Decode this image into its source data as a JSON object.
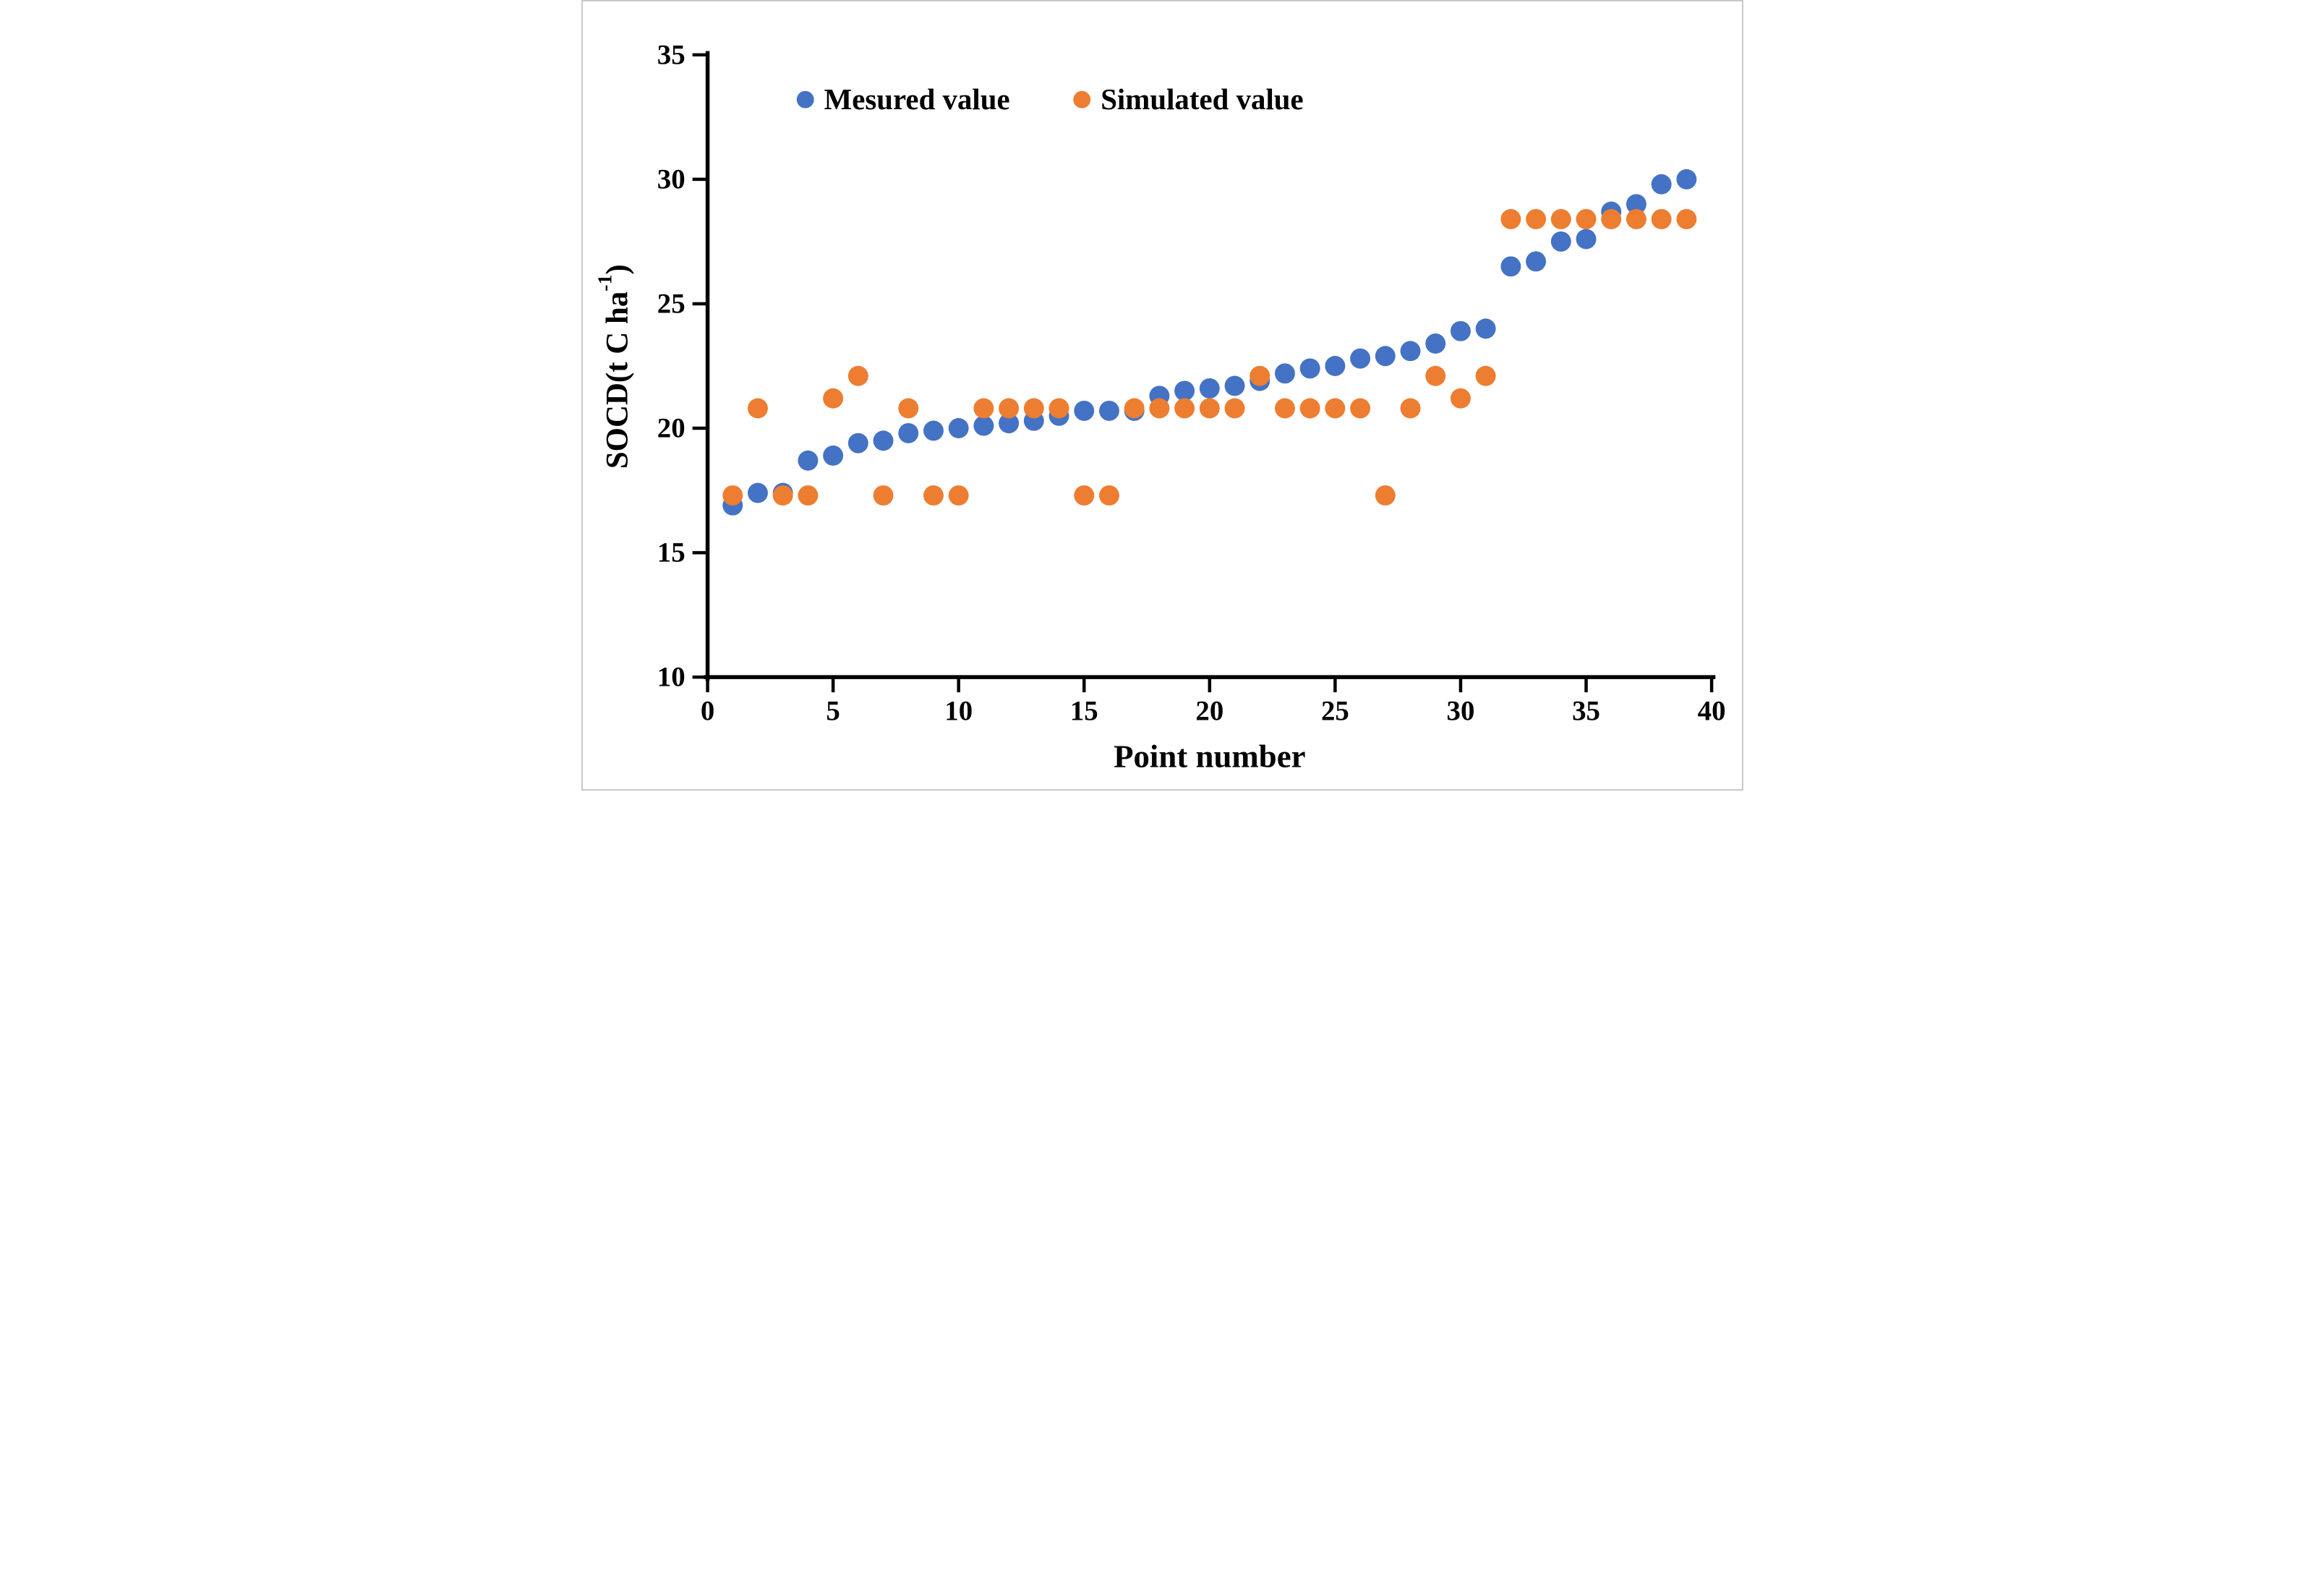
{
  "figure": {
    "border_color": "#c9c9c9",
    "background_color": "#ffffff",
    "text_color": "#000000",
    "axis_color": "#000000"
  },
  "chart_data": {
    "type": "scatter",
    "title": "",
    "xlabel": "Point number",
    "ylabel": "SOCD(t C ha⁻¹)",
    "ylabel_parts": {
      "prefix": "SOCD(t C ha",
      "superscript": "-1",
      "suffix": ")"
    },
    "xlim": [
      0,
      40
    ],
    "ylim": [
      10,
      35
    ],
    "xticks": [
      0,
      5,
      10,
      15,
      20,
      25,
      30,
      35,
      40
    ],
    "yticks": [
      10,
      15,
      20,
      25,
      30,
      35
    ],
    "grid": false,
    "legend_position": "top-inside",
    "legend": [
      {
        "label": "Mesured value",
        "color": "#4472C4",
        "marker": "circle"
      },
      {
        "label": "Simulated value",
        "color": "#ED7D31",
        "marker": "circle"
      }
    ],
    "x": [
      1,
      2,
      3,
      4,
      5,
      6,
      7,
      8,
      9,
      10,
      11,
      12,
      13,
      14,
      15,
      16,
      17,
      18,
      19,
      20,
      21,
      22,
      23,
      24,
      25,
      26,
      27,
      28,
      29,
      30,
      31,
      32,
      33,
      34,
      35,
      36,
      37,
      38,
      39
    ],
    "series": [
      {
        "name": "Mesured value",
        "color": "#4472C4",
        "values": [
          16.9,
          17.4,
          17.4,
          18.7,
          18.9,
          19.4,
          19.5,
          19.8,
          19.9,
          20.0,
          20.1,
          20.2,
          20.3,
          20.5,
          20.7,
          20.7,
          20.7,
          21.3,
          21.5,
          21.6,
          21.7,
          21.9,
          22.2,
          22.4,
          22.5,
          22.8,
          22.9,
          23.1,
          23.4,
          23.9,
          24.0,
          26.5,
          26.7,
          27.5,
          27.6,
          28.7,
          29.0,
          29.8,
          30.0
        ]
      },
      {
        "name": "Simulated value",
        "color": "#ED7D31",
        "values": [
          17.3,
          20.8,
          17.3,
          17.3,
          21.2,
          22.1,
          17.3,
          20.8,
          17.3,
          17.3,
          20.8,
          20.8,
          20.8,
          20.8,
          17.3,
          17.3,
          20.8,
          20.8,
          20.8,
          20.8,
          20.8,
          22.1,
          20.8,
          20.8,
          20.8,
          20.8,
          17.3,
          20.8,
          22.1,
          21.2,
          22.1,
          28.4,
          28.4,
          28.4,
          28.4,
          28.4,
          28.4,
          28.4,
          28.4
        ]
      }
    ]
  }
}
